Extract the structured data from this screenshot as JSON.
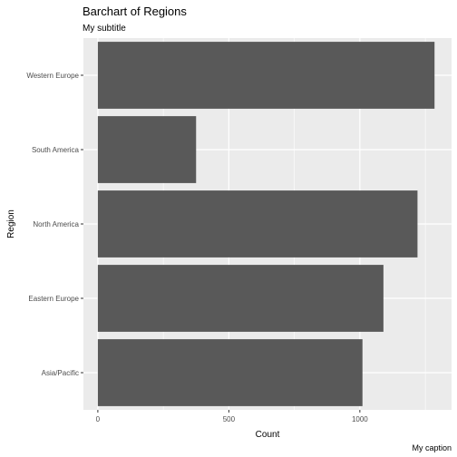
{
  "chart_data": {
    "type": "bar",
    "orientation": "horizontal",
    "title": "Barchart of Regions",
    "subtitle": "My subtitle",
    "caption": "My caption",
    "xlabel": "Count",
    "ylabel": "Region",
    "categories": [
      "Asia/Pacific",
      "Eastern Europe",
      "North America",
      "South America",
      "Western Europe"
    ],
    "values": [
      1010,
      1090,
      1220,
      375,
      1285
    ],
    "xlim": [
      -55,
      1350
    ],
    "xticks": [
      0,
      500,
      1000
    ],
    "xtick_labels": [
      "0",
      "500",
      "1000"
    ],
    "grid": true,
    "colors": {
      "panel": "#ebebeb",
      "grid_major": "#ffffff",
      "bar": "#595959",
      "text": "#000000",
      "tick_text": "#4d4d4d",
      "tick_line": "#333333"
    }
  }
}
